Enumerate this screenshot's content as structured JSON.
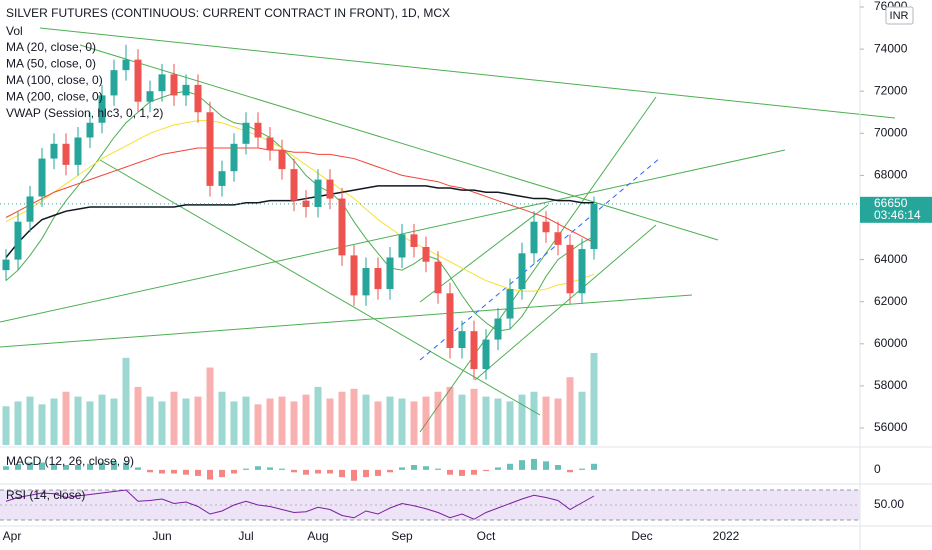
{
  "chart_data": {
    "type": "candlestick",
    "title": "SILVER FUTURES (CONTINUOUS: CURRENT CONTRACT IN FRONT), 1D, MCX",
    "volume_label": "Vol",
    "vwap_label": "VWAP (Session, hlc3, 0, 1, 2)",
    "macd_label": "MACD (12, 26, close, 9)",
    "rsi_label": "RSI (14, close)",
    "currency": "INR",
    "countdown": "03:46:14",
    "up_color": "#26a69a",
    "down_color": "#ef5350",
    "categories": [
      "Apr",
      null,
      null,
      null,
      null,
      null,
      null,
      null,
      null,
      null,
      null,
      null,
      null,
      "Jun",
      null,
      null,
      null,
      null,
      null,
      null,
      "Jul",
      null,
      null,
      null,
      null,
      null,
      "Aug",
      null,
      null,
      null,
      null,
      null,
      null,
      "Sep",
      null,
      null,
      null,
      null,
      null,
      null,
      "Oct",
      null,
      null,
      null,
      null,
      null,
      null,
      null,
      null,
      null,
      null,
      null,
      null,
      "Dec",
      null,
      null,
      null,
      null,
      null,
      null,
      "2022",
      null,
      null,
      null,
      null,
      null,
      null,
      null,
      null,
      null,
      null,
      null
    ],
    "open": [
      63500,
      64000,
      65800,
      67000,
      68800,
      69500,
      68500,
      69800,
      70500,
      71800,
      73000,
      73500,
      71500,
      72000,
      72800,
      71800,
      72300,
      71000,
      67500,
      68200,
      69500,
      70500,
      69800,
      69200,
      68300,
      66800,
      66500,
      67800,
      66900,
      64200,
      62300,
      63600,
      62600,
      64100,
      65200,
      64600,
      63900,
      62400,
      59800,
      60600,
      58800,
      60200,
      61200,
      62600,
      64300,
      65800,
      65300,
      64700,
      62400,
      64500,
      null,
      null,
      null,
      null,
      null,
      null,
      null,
      null,
      null,
      null,
      null,
      null,
      null,
      null,
      null,
      null,
      null,
      null,
      null,
      null,
      null,
      null
    ],
    "high": [
      64500,
      66300,
      67500,
      69300,
      70000,
      70000,
      70300,
      71000,
      72300,
      73500,
      74200,
      74000,
      72500,
      73300,
      73300,
      72800,
      72800,
      71500,
      68700,
      70000,
      71000,
      71000,
      70300,
      69700,
      68800,
      67300,
      68300,
      68300,
      67400,
      64700,
      64100,
      64100,
      64600,
      65700,
      65700,
      65100,
      64400,
      62900,
      61100,
      61100,
      60700,
      61700,
      63100,
      64800,
      66300,
      66300,
      65800,
      65200,
      65000,
      67000,
      null,
      null,
      null,
      null,
      null,
      null,
      null,
      null,
      null,
      null,
      null,
      null,
      null,
      null,
      null,
      null,
      null,
      null,
      null,
      null,
      null,
      null
    ],
    "low": [
      63000,
      63500,
      65300,
      66500,
      68300,
      68000,
      68000,
      69300,
      70000,
      71300,
      72500,
      71000,
      71000,
      71500,
      71300,
      71300,
      70500,
      67000,
      67000,
      67700,
      69000,
      69300,
      68700,
      67800,
      66300,
      66000,
      66000,
      66400,
      63700,
      61800,
      61800,
      62100,
      62100,
      63600,
      64100,
      63400,
      61900,
      59300,
      59300,
      58300,
      58300,
      59700,
      60700,
      62100,
      63800,
      64800,
      64200,
      61900,
      61900,
      64000,
      null,
      null,
      null,
      null,
      null,
      null,
      null,
      null,
      null,
      null,
      null,
      null,
      null,
      null,
      null,
      null,
      null,
      null,
      null,
      null,
      null,
      null
    ],
    "close": [
      64000,
      65800,
      67000,
      68800,
      69500,
      68500,
      69800,
      70500,
      71800,
      73000,
      73500,
      71500,
      72000,
      72800,
      71800,
      72300,
      71000,
      67500,
      68200,
      69500,
      70500,
      69800,
      69200,
      68300,
      66800,
      66500,
      67800,
      66900,
      64200,
      62300,
      63600,
      62600,
      64100,
      65200,
      64600,
      63900,
      62400,
      59800,
      60600,
      58800,
      60200,
      61200,
      62600,
      64300,
      65800,
      65300,
      64700,
      62400,
      64500,
      66650,
      null,
      null,
      null,
      null,
      null,
      null,
      null,
      null,
      null,
      null,
      null,
      null,
      null,
      null,
      null,
      null,
      null,
      null,
      null,
      null,
      null,
      null
    ],
    "volume": [
      40,
      45,
      50,
      42,
      48,
      55,
      50,
      45,
      52,
      48,
      90,
      60,
      50,
      45,
      55,
      48,
      50,
      80,
      55,
      45,
      50,
      42,
      48,
      50,
      45,
      52,
      60,
      48,
      55,
      58,
      52,
      45,
      50,
      48,
      45,
      50,
      55,
      60,
      52,
      58,
      50,
      48,
      45,
      52,
      55,
      50,
      48,
      70,
      55,
      95,
      null,
      null,
      null,
      null,
      null,
      null,
      null,
      null,
      null,
      null,
      null,
      null,
      null,
      null,
      null,
      null,
      null,
      null,
      null,
      null,
      null,
      null
    ],
    "series": [
      {
        "name": "MA (20, close, 0)",
        "color": "#4caf50",
        "values": [
          63000,
          63500,
          64200,
          65000,
          66000,
          66800,
          67500,
          68200,
          69000,
          69800,
          70500,
          71000,
          71500,
          71700,
          71900,
          72000,
          71800,
          71300,
          70800,
          70500,
          70400,
          70100,
          69800,
          69300,
          68700,
          68000,
          67500,
          67200,
          66700,
          65800,
          65000,
          64300,
          63600,
          63500,
          63800,
          64200,
          64000,
          63200,
          62300,
          61500,
          61000,
          60600,
          60700,
          61300,
          62200,
          63200,
          64000,
          64400,
          64800,
          65100,
          null,
          null,
          null,
          null,
          null,
          null,
          null,
          null,
          null,
          null,
          null,
          null,
          null,
          null,
          null,
          null,
          null,
          null,
          null,
          null,
          null,
          null
        ]
      },
      {
        "name": "MA (50, close, 0)",
        "color": "#f5e130",
        "values": [
          65800,
          66100,
          66400,
          66800,
          67200,
          67600,
          68000,
          68400,
          68800,
          69100,
          69400,
          69700,
          70000,
          70200,
          70400,
          70500,
          70600,
          70600,
          70500,
          70300,
          70100,
          69900,
          69600,
          69300,
          68900,
          68500,
          68100,
          67700,
          67300,
          66900,
          66400,
          65900,
          65500,
          65100,
          64800,
          64500,
          64200,
          63900,
          63600,
          63300,
          63000,
          62800,
          62600,
          62500,
          62500,
          62600,
          62800,
          62900,
          63100,
          63300,
          null,
          null,
          null,
          null,
          null,
          null,
          null,
          null,
          null,
          null,
          null,
          null,
          null,
          null,
          null,
          null,
          null,
          null,
          null,
          null,
          null,
          null
        ]
      },
      {
        "name": "MA (100, close, 0)",
        "color": "#f44336",
        "values": [
          66000,
          66300,
          66600,
          66900,
          67200,
          67400,
          67600,
          67800,
          68000,
          68200,
          68400,
          68600,
          68800,
          69000,
          69100,
          69200,
          69300,
          69300,
          69300,
          69300,
          69300,
          69300,
          69200,
          69200,
          69100,
          69100,
          69000,
          69000,
          68900,
          68800,
          68600,
          68400,
          68200,
          68000,
          67900,
          67800,
          67700,
          67500,
          67400,
          67200,
          67000,
          66800,
          66600,
          66400,
          66200,
          66000,
          65700,
          65400,
          65100,
          64800,
          null,
          null,
          null,
          null,
          null,
          null,
          null,
          null,
          null,
          null,
          null,
          null,
          null,
          null,
          null,
          null,
          null,
          null,
          null,
          null,
          null,
          null
        ]
      },
      {
        "name": "MA (200, close, 0)",
        "color": "#131722",
        "values": [
          64100,
          64800,
          65400,
          65900,
          66100,
          66300,
          66400,
          66500,
          66500,
          66500,
          66500,
          66500,
          66500,
          66500,
          66500,
          66600,
          66600,
          66600,
          66600,
          66600,
          66700,
          66700,
          66800,
          66800,
          66800,
          66900,
          67000,
          67100,
          67200,
          67300,
          67400,
          67500,
          67500,
          67500,
          67500,
          67500,
          67400,
          67400,
          67300,
          67300,
          67200,
          67200,
          67100,
          67000,
          66900,
          66900,
          66800,
          66800,
          66700,
          66700,
          null,
          null,
          null,
          null,
          null,
          null,
          null,
          null,
          null,
          null,
          null,
          null,
          null,
          null,
          null,
          null,
          null,
          null,
          null,
          null,
          null,
          null
        ]
      }
    ],
    "macd_hist": [
      0.3,
      0.5,
      0.6,
      0.6,
      0.5,
      0.4,
      0.4,
      0.5,
      0.6,
      0.7,
      0.6,
      0.2,
      -0.2,
      -0.3,
      -0.3,
      -0.4,
      -0.5,
      -0.8,
      -0.6,
      -0.3,
      0.1,
      0.3,
      0.2,
      0.1,
      -0.2,
      -0.4,
      -0.3,
      -0.3,
      -0.6,
      -0.9,
      -0.6,
      -0.5,
      -0.2,
      0.2,
      0.4,
      0.3,
      0.1,
      -0.4,
      -0.5,
      -0.4,
      -0.1,
      0.2,
      0.5,
      0.8,
      0.9,
      0.7,
      0.4,
      -0.2,
      0.1,
      0.5,
      null,
      null,
      null,
      null,
      null,
      null,
      null,
      null,
      null,
      null,
      null,
      null,
      null,
      null,
      null,
      null,
      null,
      null,
      null,
      null,
      null,
      null
    ],
    "macd_lim": [
      -1,
      1.8
    ],
    "macd_ticks": [
      0
    ],
    "rsi": [
      55,
      60,
      63,
      66,
      65,
      60,
      62,
      64,
      66,
      68,
      70,
      55,
      56,
      58,
      52,
      54,
      48,
      38,
      42,
      50,
      55,
      50,
      48,
      44,
      40,
      41,
      47,
      44,
      36,
      33,
      42,
      38,
      46,
      52,
      49,
      45,
      40,
      33,
      38,
      31,
      40,
      46,
      52,
      58,
      63,
      60,
      56,
      44,
      53,
      62,
      null,
      null,
      null,
      null,
      null,
      null,
      null,
      null,
      null,
      null,
      null,
      null,
      null,
      null,
      null,
      null,
      null,
      null,
      null,
      null,
      null,
      null
    ],
    "rsi_lim": [
      30,
      70
    ],
    "rsi_ticks": [
      {
        "value": 50,
        "label": "50.00"
      }
    ],
    "rsi_color": "#7b1fa2",
    "ylim": [
      56000,
      76000
    ],
    "yticks": [
      56000,
      58000,
      60000,
      62000,
      64000,
      66000,
      68000,
      70000,
      72000,
      74000,
      76000
    ]
  }
}
